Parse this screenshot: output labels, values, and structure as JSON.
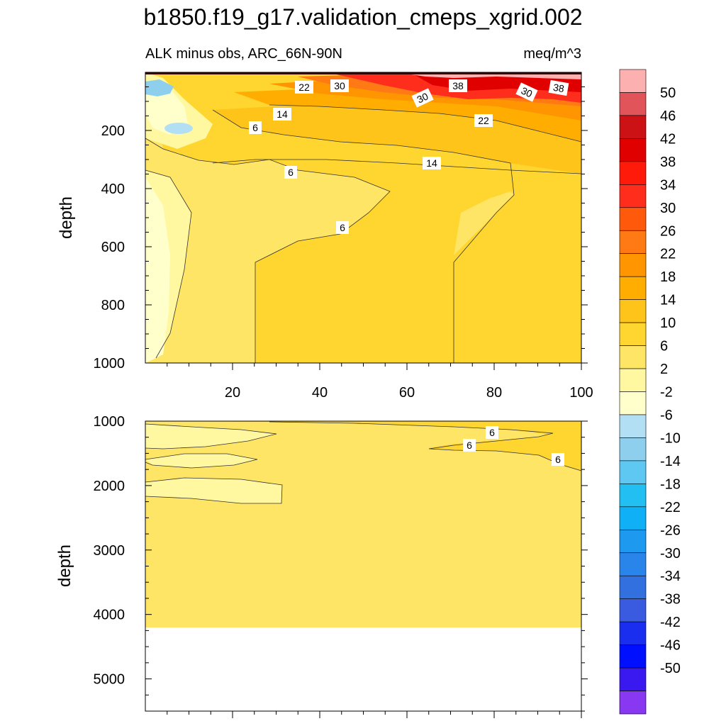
{
  "chart_data": {
    "type": "heatmap",
    "title": "b1850.f19_g17.validation_cmeps_xgrid.002",
    "subtitle_left": "ALK minus obs, ARC_66N-90N",
    "subtitle_right": "meq/m^3",
    "colorbar": {
      "levels": [
        "50",
        "46",
        "42",
        "38",
        "34",
        "30",
        "26",
        "22",
        "18",
        "14",
        "10",
        "6",
        "2",
        "-2",
        "-6",
        "-10",
        "-14",
        "-18",
        "-22",
        "-26",
        "-30",
        "-34",
        "-38",
        "-42",
        "-46",
        "-50"
      ],
      "colors": [
        "#fcb0b0",
        "#e0545a",
        "#cc1214",
        "#e00000",
        "#ff1a0a",
        "#ff2e1c",
        "#ff5a0c",
        "#ff7a14",
        "#ff9500",
        "#ffad00",
        "#ffc41a",
        "#ffd530",
        "#ffe566",
        "#fff8a0",
        "#ffffcc",
        "#b3dff5",
        "#8ecfee",
        "#5ec8f2",
        "#22bff2",
        "#0fb0f5",
        "#1e99f0",
        "#2a85eb",
        "#3270e0",
        "#3a5ae0",
        "#1a2ef0",
        "#0010ff",
        "#3a18f0",
        "#8838f0"
      ]
    },
    "panels": [
      {
        "name": "upper",
        "ylabel": "depth",
        "ylim": [
          1000,
          0
        ],
        "yticks": [
          "200",
          "400",
          "600",
          "800",
          "1000"
        ],
        "xlim": [
          0,
          100
        ],
        "xticks": [
          "20",
          "40",
          "60",
          "80",
          "100"
        ],
        "contour_labels": [
          "22",
          "30",
          "38",
          "30",
          "38",
          "30",
          "14",
          "22",
          "6",
          "14",
          "6",
          "6"
        ]
      },
      {
        "name": "lower",
        "ylabel": "depth",
        "ylim": [
          5500,
          1000
        ],
        "yticks": [
          "1000",
          "2000",
          "3000",
          "4000",
          "5000"
        ],
        "data_bottom_depth": 4100,
        "contour_labels": [
          "6",
          "6",
          "6"
        ]
      }
    ]
  }
}
